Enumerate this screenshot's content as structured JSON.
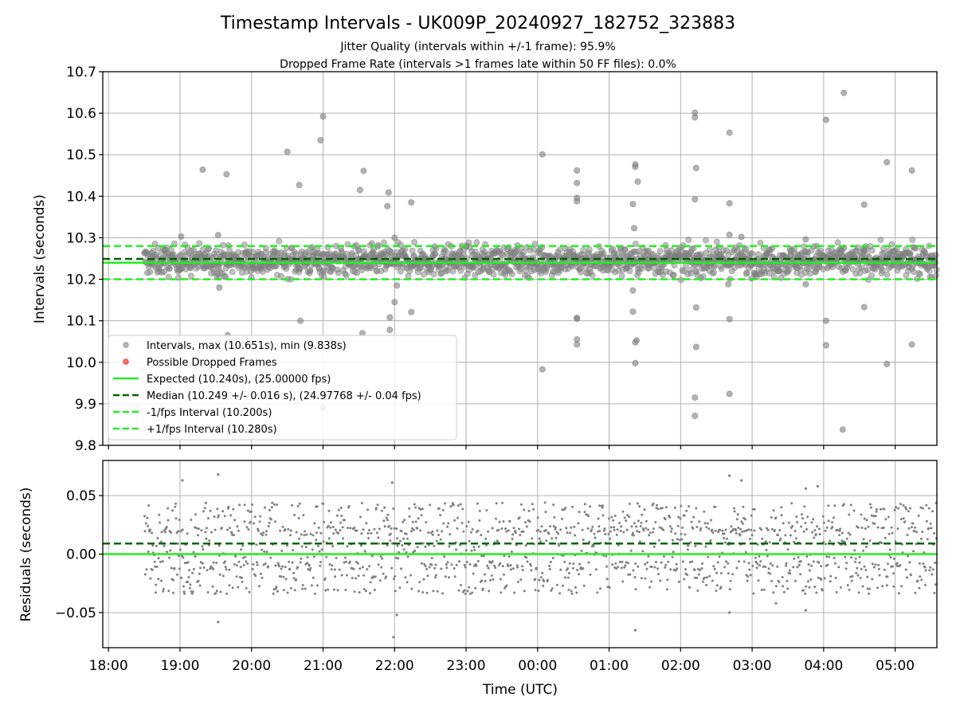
{
  "figure": {
    "title": "Timestamp Intervals - UK009P_20240927_182752_323883",
    "subtitle_1": "Jitter Quality (intervals within +/-1 frame): 95.9%",
    "subtitle_2": "Dropped Frame Rate (intervals >1 frames late within 50 FF files): 0.0%"
  },
  "colors": {
    "intervals": "#808080",
    "dropped": "#ff0000",
    "expected": "#22ee22",
    "median": "#006400",
    "fps_band": "#22ee22",
    "grid": "#b0b0b0"
  },
  "chart_data": [
    {
      "type": "scatter",
      "ylabel": "Intervals (seconds)",
      "xlim": [
        "18:00",
        "05:35"
      ],
      "ylim": [
        9.8,
        10.7
      ],
      "y_ticks": [
        "9.8",
        "9.9",
        "10.0",
        "10.1",
        "10.2",
        "10.3",
        "10.4",
        "10.5",
        "10.6",
        "10.7"
      ],
      "grid": true,
      "legend_position": "lower-left",
      "legend": {
        "intervals": "Intervals, max (10.651s), min (9.838s)",
        "dropped": "Possible Dropped Frames",
        "expected": "Expected (10.240s), (25.00000 fps)",
        "median": "Median (10.249 +/- 0.016 s), (24.97768 +/- 0.04 fps)",
        "minus_fps": "-1/fps Interval (10.200s)",
        "plus_fps": "+1/fps Interval (10.280s)"
      },
      "lines": {
        "expected": 10.24,
        "median": 10.249,
        "minus_fps": 10.2,
        "plus_fps": 10.28
      },
      "band": {
        "start": "18:30",
        "end": "05:35",
        "low": 10.205,
        "high": 10.285
      },
      "outliers": [
        {
          "x": "19:01",
          "y": 10.303
        },
        {
          "x": "19:19",
          "y": 10.464
        },
        {
          "x": "19:32",
          "y": 10.306
        },
        {
          "x": "19:33",
          "y": 10.18
        },
        {
          "x": "19:39",
          "y": 10.453
        },
        {
          "x": "19:40",
          "y": 10.065
        },
        {
          "x": "20:30",
          "y": 10.507
        },
        {
          "x": "20:40",
          "y": 10.427
        },
        {
          "x": "20:41",
          "y": 10.1
        },
        {
          "x": "20:58",
          "y": 10.535
        },
        {
          "x": "21:00",
          "y": 10.592
        },
        {
          "x": "21:00",
          "y": 9.892
        },
        {
          "x": "21:31",
          "y": 10.415
        },
        {
          "x": "21:34",
          "y": 10.461
        },
        {
          "x": "21:33",
          "y": 10.07
        },
        {
          "x": "21:55",
          "y": 10.409
        },
        {
          "x": "21:54",
          "y": 10.376
        },
        {
          "x": "21:56",
          "y": 10.108
        },
        {
          "x": "21:56",
          "y": 10.078
        },
        {
          "x": "22:00",
          "y": 10.145
        },
        {
          "x": "22:00",
          "y": 10.3
        },
        {
          "x": "22:02",
          "y": 10.185
        },
        {
          "x": "22:14",
          "y": 10.385
        },
        {
          "x": "22:14",
          "y": 10.121
        },
        {
          "x": "00:04",
          "y": 10.501
        },
        {
          "x": "00:04",
          "y": 9.983
        },
        {
          "x": "00:33",
          "y": 10.462
        },
        {
          "x": "00:33",
          "y": 10.432
        },
        {
          "x": "00:33",
          "y": 10.396
        },
        {
          "x": "00:33",
          "y": 10.388
        },
        {
          "x": "00:33",
          "y": 10.107
        },
        {
          "x": "00:33",
          "y": 10.105
        },
        {
          "x": "00:33",
          "y": 10.055
        },
        {
          "x": "00:33",
          "y": 10.043
        },
        {
          "x": "01:20",
          "y": 10.381
        },
        {
          "x": "01:21",
          "y": 10.323
        },
        {
          "x": "01:20",
          "y": 10.173
        },
        {
          "x": "01:20",
          "y": 10.122
        },
        {
          "x": "01:22",
          "y": 10.477
        },
        {
          "x": "01:22",
          "y": 10.471
        },
        {
          "x": "01:24",
          "y": 10.435
        },
        {
          "x": "01:22",
          "y": 10.048
        },
        {
          "x": "01:23",
          "y": 10.053
        },
        {
          "x": "01:22",
          "y": 9.998
        },
        {
          "x": "02:12",
          "y": 10.601
        },
        {
          "x": "02:12",
          "y": 10.59
        },
        {
          "x": "02:13",
          "y": 10.468
        },
        {
          "x": "02:12",
          "y": 10.393
        },
        {
          "x": "02:13",
          "y": 10.132
        },
        {
          "x": "02:13",
          "y": 10.037
        },
        {
          "x": "02:12",
          "y": 9.915
        },
        {
          "x": "02:12",
          "y": 9.871
        },
        {
          "x": "02:41",
          "y": 10.553
        },
        {
          "x": "02:41",
          "y": 10.383
        },
        {
          "x": "02:41",
          "y": 10.307
        },
        {
          "x": "02:41",
          "y": 10.104
        },
        {
          "x": "02:41",
          "y": 9.924
        },
        {
          "x": "02:40",
          "y": 10.188
        },
        {
          "x": "02:51",
          "y": 10.302
        },
        {
          "x": "03:45",
          "y": 10.296
        },
        {
          "x": "03:45",
          "y": 10.188
        },
        {
          "x": "04:02",
          "y": 10.584
        },
        {
          "x": "04:02",
          "y": 10.1
        },
        {
          "x": "04:02",
          "y": 10.041
        },
        {
          "x": "04:17",
          "y": 10.649
        },
        {
          "x": "04:16",
          "y": 9.838
        },
        {
          "x": "04:34",
          "y": 10.38
        },
        {
          "x": "04:34",
          "y": 10.133
        },
        {
          "x": "04:53",
          "y": 10.482
        },
        {
          "x": "04:53",
          "y": 9.996
        },
        {
          "x": "05:14",
          "y": 10.462
        },
        {
          "x": "05:14",
          "y": 10.043
        }
      ]
    },
    {
      "type": "scatter",
      "xlabel": "Time (UTC)",
      "ylabel": "Residuals (seconds)",
      "xlim": [
        "18:00",
        "05:35"
      ],
      "ylim": [
        -0.08,
        0.08
      ],
      "x_ticks": [
        "18:00",
        "19:00",
        "20:00",
        "21:00",
        "22:00",
        "23:00",
        "00:00",
        "01:00",
        "02:00",
        "03:00",
        "04:00",
        "05:00"
      ],
      "y_ticks": [
        "−0.05",
        "0.00",
        "0.05"
      ],
      "y_tick_values": [
        -0.05,
        0,
        0.05
      ],
      "grid": true,
      "lines": {
        "expected": 0.0,
        "median": 0.009
      },
      "band": {
        "start": "18:30",
        "end": "05:35",
        "low": -0.03,
        "high": 0.04
      },
      "outliers": [
        {
          "x": "19:02",
          "y": 0.063
        },
        {
          "x": "19:32",
          "y": 0.068
        },
        {
          "x": "19:32",
          "y": -0.058
        },
        {
          "x": "21:58",
          "y": 0.061
        },
        {
          "x": "22:02",
          "y": -0.052
        },
        {
          "x": "21:59",
          "y": -0.071
        },
        {
          "x": "01:22",
          "y": -0.065
        },
        {
          "x": "02:41",
          "y": 0.067
        },
        {
          "x": "02:51",
          "y": 0.063
        },
        {
          "x": "02:41",
          "y": -0.05
        },
        {
          "x": "03:45",
          "y": 0.056
        },
        {
          "x": "03:45",
          "y": -0.048
        },
        {
          "x": "03:55",
          "y": 0.058
        },
        {
          "x": "03:20",
          "y": -0.042
        }
      ]
    }
  ]
}
